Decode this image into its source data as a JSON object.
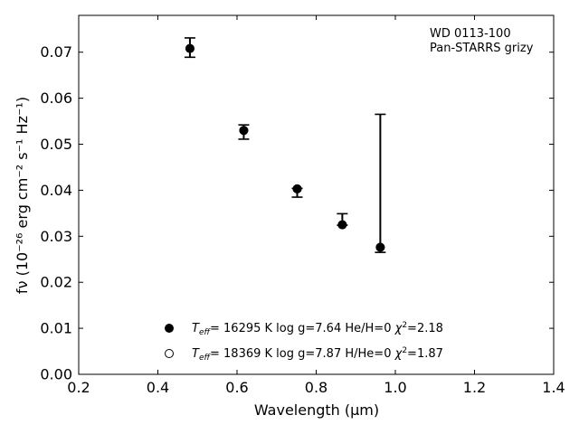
{
  "chart_data": {
    "type": "scatter",
    "title": "",
    "xlabel": "Wavelength (μm)",
    "ylabel": "fν (10⁻²⁶ erg cm⁻² s⁻¹ Hz⁻¹)",
    "xlim": [
      0.2,
      1.4
    ],
    "ylim": [
      0.0,
      0.078
    ],
    "x_ticks": [
      0.2,
      0.4,
      0.6,
      0.8,
      1.0,
      1.2,
      1.4
    ],
    "x_tick_labels": [
      "0.2",
      "0.4",
      "0.6",
      "0.8",
      "1.0",
      "1.2",
      "1.4"
    ],
    "y_ticks": [
      0.0,
      0.01,
      0.02,
      0.03,
      0.04,
      0.05,
      0.06,
      0.07
    ],
    "y_tick_labels": [
      "0.00",
      "0.01",
      "0.02",
      "0.03",
      "0.04",
      "0.05",
      "0.06",
      "0.07"
    ],
    "grid": false,
    "annotation": {
      "line1": "WD 0113-100",
      "line2": "Pan-STARRS grizy",
      "placement": "top-right"
    },
    "observed": {
      "x": [
        0.481,
        0.617,
        0.752,
        0.866,
        0.962
      ],
      "y": [
        0.071,
        0.0531,
        0.0404,
        0.0324,
        0.0276
      ],
      "yerr_low": [
        0.0021,
        0.002,
        0.0019,
        0.0,
        0.0011
      ],
      "yerr_high": [
        0.0021,
        0.0011,
        0.0,
        0.0025,
        0.0289
      ]
    },
    "series": [
      {
        "name": "Teff= 16295 K  log g=7.64  He/H=0  χ²=2.18",
        "marker": "filled-circle",
        "x": [
          0.481,
          0.617,
          0.752,
          0.866,
          0.962
        ],
        "y": [
          0.0708,
          0.053,
          0.0403,
          0.0325,
          0.0276
        ]
      },
      {
        "name": "Teff= 18369 K  log g=7.87  H/He=0  χ²=1.87",
        "marker": "open-circle",
        "x": [
          0.481,
          0.617,
          0.752,
          0.866,
          0.962
        ],
        "y": [
          0.0708,
          0.053,
          0.0403,
          0.0325,
          0.0276
        ]
      }
    ],
    "legend": [
      {
        "marker": "filled-circle",
        "teff": "16295",
        "logg": "7.64",
        "comp": "He/H=0",
        "chi2": "2.18"
      },
      {
        "marker": "open-circle",
        "teff": "18369",
        "logg": "7.87",
        "comp": "H/He=0",
        "chi2": "1.87"
      }
    ],
    "legend_placement": "lower-center"
  }
}
